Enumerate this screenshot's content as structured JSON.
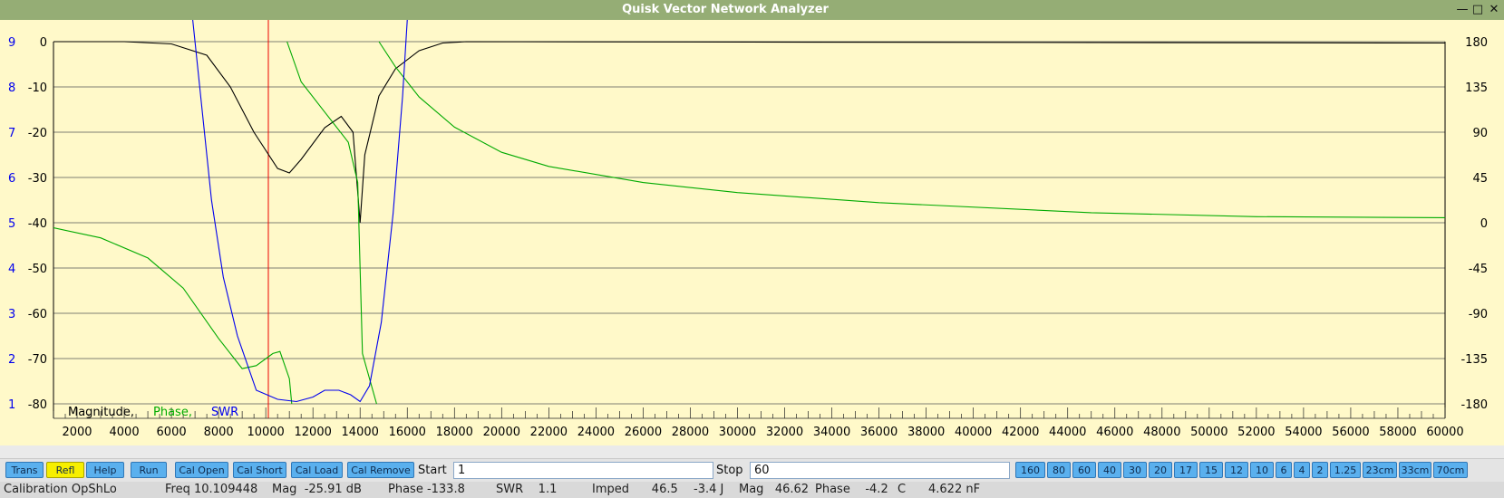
{
  "window": {
    "title": "Quisk Vector Network Analyzer",
    "minimize_glyph": "—",
    "maximize_glyph": "□",
    "close_glyph": "✕"
  },
  "legend": {
    "magnitude": "Magnitude,",
    "phase": "Phase,",
    "swr": "SWR"
  },
  "chart_data": {
    "type": "line",
    "x_ticks": [
      "2000",
      "4000",
      "6000",
      "8000",
      "10000",
      "12000",
      "14000",
      "16000",
      "18000",
      "20000",
      "22000",
      "24000",
      "26000",
      "28000",
      "30000",
      "32000",
      "34000",
      "36000",
      "38000",
      "40000",
      "42000",
      "44000",
      "46000",
      "48000",
      "50000",
      "52000",
      "54000",
      "56000",
      "58000",
      "60000"
    ],
    "xlim": [
      1000,
      60000
    ],
    "left_outer_ticks": [
      "9",
      "8",
      "7",
      "6",
      "5",
      "4",
      "3",
      "2",
      "1"
    ],
    "left_inner_ticks": [
      "0",
      "-10",
      "-20",
      "-30",
      "-40",
      "-50",
      "-60",
      "-70",
      "-80"
    ],
    "right_ticks": [
      "180",
      "135",
      "90",
      "45",
      "0",
      "-45",
      "-90",
      "-135",
      "-180"
    ],
    "y_magnitude_lim": [
      -80,
      0
    ],
    "y_swr_lim": [
      1,
      9
    ],
    "y_phase_lim": [
      -180,
      180
    ],
    "marker_x": 10109,
    "grid": true,
    "colors": {
      "magnitude": "#000000",
      "phase": "#00aa00",
      "swr": "#0000ee",
      "marker": "#ee0000",
      "background": "#fff9c9"
    },
    "series": [
      {
        "name": "Magnitude",
        "axis": "magnitude",
        "points": [
          [
            1000,
            0
          ],
          [
            4000,
            0
          ],
          [
            6000,
            -0.5
          ],
          [
            7500,
            -3
          ],
          [
            8500,
            -10
          ],
          [
            9500,
            -20
          ],
          [
            10500,
            -28
          ],
          [
            11000,
            -29
          ],
          [
            11500,
            -26
          ],
          [
            12500,
            -19
          ],
          [
            13200,
            -16.5
          ],
          [
            13700,
            -20
          ],
          [
            14000,
            -40
          ],
          [
            14200,
            -25
          ],
          [
            14800,
            -12
          ],
          [
            15500,
            -6
          ],
          [
            16500,
            -2
          ],
          [
            17500,
            -0.3
          ],
          [
            18500,
            0
          ],
          [
            60000,
            -0.3
          ]
        ]
      },
      {
        "name": "Phase",
        "axis": "phase",
        "points": [
          [
            1000,
            -5
          ],
          [
            3000,
            -15
          ],
          [
            5000,
            -35
          ],
          [
            6500,
            -65
          ],
          [
            8000,
            -115
          ],
          [
            9000,
            -145
          ],
          [
            9600,
            -142
          ],
          [
            10300,
            -130
          ],
          [
            10600,
            -128
          ],
          [
            11000,
            -155
          ],
          [
            11100,
            -180
          ],
          [
            null,
            null
          ],
          [
            10900,
            180
          ],
          [
            11500,
            140
          ],
          [
            12500,
            110
          ],
          [
            13500,
            80
          ],
          [
            13900,
            40
          ],
          [
            14000,
            -45
          ],
          [
            14100,
            -130
          ],
          [
            14700,
            -180
          ],
          [
            null,
            null
          ],
          [
            14800,
            180
          ],
          [
            15500,
            155
          ],
          [
            16500,
            125
          ],
          [
            18000,
            95
          ],
          [
            20000,
            70
          ],
          [
            22000,
            56
          ],
          [
            26000,
            40
          ],
          [
            30000,
            30
          ],
          [
            36000,
            20
          ],
          [
            45000,
            10
          ],
          [
            52000,
            6
          ],
          [
            60000,
            5
          ]
        ]
      },
      {
        "name": "SWR",
        "axis": "swr",
        "points": [
          [
            6900,
            9.5
          ],
          [
            7200,
            8
          ],
          [
            7700,
            5.5
          ],
          [
            8200,
            3.8
          ],
          [
            8800,
            2.5
          ],
          [
            9600,
            1.3
          ],
          [
            10500,
            1.1
          ],
          [
            11300,
            1.05
          ],
          [
            12000,
            1.15
          ],
          [
            12500,
            1.3
          ],
          [
            13100,
            1.3
          ],
          [
            13600,
            1.2
          ],
          [
            14000,
            1.05
          ],
          [
            14400,
            1.4
          ],
          [
            14900,
            2.8
          ],
          [
            15400,
            5.2
          ],
          [
            15800,
            7.8
          ],
          [
            16000,
            9.5
          ]
        ]
      }
    ]
  },
  "controls": {
    "buttons": [
      {
        "key": "trans",
        "label": "Trans",
        "active": false
      },
      {
        "key": "refl",
        "label": "Refl",
        "active": true
      },
      {
        "key": "help",
        "label": "Help",
        "active": false
      },
      {
        "key": "run",
        "label": "Run",
        "active": false
      },
      {
        "key": "cal-open",
        "label": "Cal Open",
        "active": false
      },
      {
        "key": "cal-short",
        "label": "Cal Short",
        "active": false
      },
      {
        "key": "cal-load",
        "label": "Cal Load",
        "active": false
      },
      {
        "key": "cal-remove",
        "label": "Cal Remove",
        "active": false
      }
    ],
    "start_label": "Start",
    "start_value": "1",
    "stop_label": "Stop",
    "stop_value": "60",
    "bands": [
      "160",
      "80",
      "60",
      "40",
      "30",
      "20",
      "17",
      "15",
      "12",
      "10",
      "6",
      "4",
      "2",
      "1.25",
      "23cm",
      "33cm",
      "70cm"
    ]
  },
  "status": {
    "calibration": "Calibration OpShLo",
    "freq": "Freq 10.109448",
    "mag": "Mag  -25.91 dB",
    "phase": "Phase -133.8",
    "swr": "SWR    1.1",
    "imped": "Imped      46.5",
    "reactance": "-3.4 J",
    "mag2": "Mag   46.62",
    "phase2": "Phase    -4.2",
    "cap_label": "C",
    "cap_value": "4.622 nF"
  }
}
